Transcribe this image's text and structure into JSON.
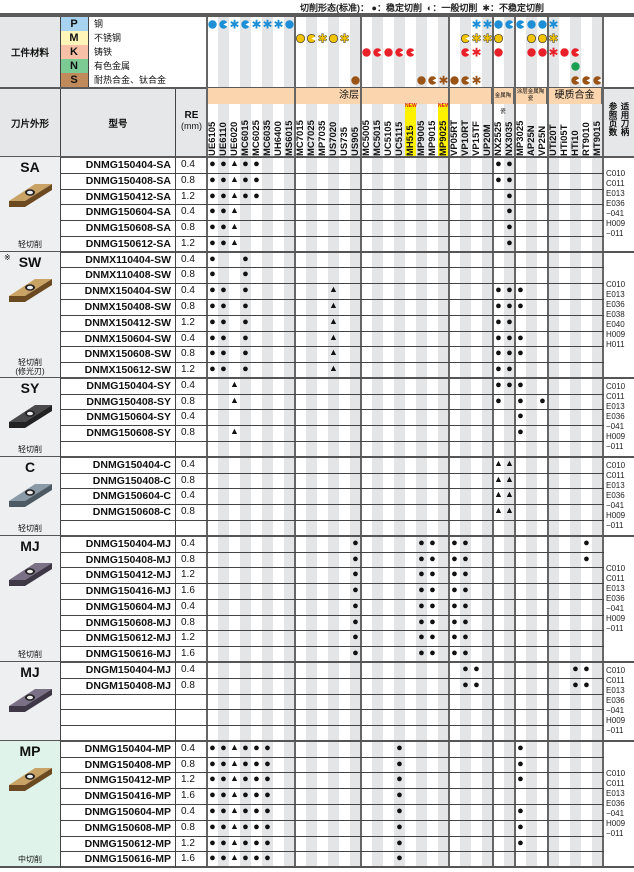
{
  "legend": {
    "title": "切削形态(标准)：",
    "stable": "●：稳定切削",
    "general": "◐：一般切削",
    "unstable": "✱：不稳定切削"
  },
  "header": {
    "workpiece": "工件材料",
    "shape": "刀片外形",
    "model": "型号",
    "re": "RE",
    "re_unit": "(mm)",
    "ref_a": "参照页数",
    "ref_b": "适用刀柄",
    "new_badge": "NEW"
  },
  "colors": {
    "P": "#1e8fd6",
    "M": "#f5c400",
    "K": "#e8202a",
    "N": "#1aa050",
    "S": "#9a5418",
    "stripe": "#e4e5e6",
    "band": "#fbd5ad"
  },
  "groups": [
    {
      "label": "涂层",
      "grades": [
        "UE6105",
        "UE6110",
        "UE6020",
        "MC6015",
        "MC6025",
        "MC6035",
        "UH6400",
        "MS6015",
        "MC7015",
        "MC7025",
        "MP7035",
        "US7020",
        "US735",
        "US905",
        "MC5005",
        "MC5015",
        "UC5105",
        "UC5115",
        "MH515",
        "MP9005",
        "MP9015",
        "MP9025",
        "VP05RT",
        "VP10RT",
        "VP15TF",
        "UP20M"
      ],
      "subgroups": [
        8,
        6,
        8,
        4
      ]
    },
    {
      "label": "金属陶瓷",
      "grades": [
        "NX2525",
        "NX3035"
      ]
    },
    {
      "label": "涂层金属陶瓷",
      "grades": [
        "MP3025",
        "AP25N",
        "VP25N"
      ]
    },
    {
      "label": "硬质合金",
      "grades": [
        "UTi20T",
        "HTi05T",
        "HTi10",
        "RT9010",
        "MT9015"
      ]
    }
  ],
  "new_grades": [
    "MH515",
    "MP9025"
  ],
  "materials": [
    {
      "letter": "P",
      "name": "钢",
      "bg": "#a7d3f0",
      "apps": {
        "UE6105": "stable",
        "UE6110": "general",
        "UE6020": "unstable",
        "MC6015": "general",
        "MC6025": "unstable",
        "MC6035": "unstable",
        "UH6400": "unstable",
        "MS6015": "stable",
        "VP15TF": "unstable",
        "UP20M": "unstable",
        "NX2525": "stable",
        "NX3035": "general",
        "MP3025": "general",
        "AP25N": "stable",
        "VP25N": "stable",
        "UTi20T": "unstable"
      }
    },
    {
      "letter": "M",
      "name": "不锈钢",
      "bg": "#fff5b8",
      "apps": {
        "MC7015": "stable",
        "MC7025": "general",
        "MP7035": "unstable",
        "US7020": "stable",
        "US735": "unstable",
        "VP10RT": "general",
        "VP15TF": "unstable",
        "UP20M": "unstable",
        "NX2525": "stable",
        "AP25N": "stable",
        "VP25N": "stable",
        "UTi20T": "unstable"
      }
    },
    {
      "letter": "K",
      "name": "铸铁",
      "bg": "#f9c0a8",
      "apps": {
        "MC5005": "stable",
        "MC5015": "general",
        "UC5105": "stable",
        "UC5115": "general",
        "MH515": "general",
        "VP10RT": "general",
        "VP15TF": "unstable",
        "NX2525": "stable",
        "AP25N": "stable",
        "VP25N": "stable",
        "UTi20T": "unstable",
        "HTi05T": "stable",
        "HTi10": "general"
      }
    },
    {
      "letter": "N",
      "name": "有色金属",
      "bg": "#7ccb95",
      "apps": {
        "HTi10": "stable"
      }
    },
    {
      "letter": "S",
      "name": "耐热合金、钛合金",
      "bg": "#c08a5a",
      "apps": {
        "US905": "stable",
        "MP9005": "stable",
        "MP9015": "general",
        "MP9025": "unstable",
        "VP05RT": "stable",
        "VP10RT": "general",
        "VP15TF": "unstable",
        "HTi10": "general",
        "RT9010": "general",
        "MT9015": "general"
      }
    }
  ],
  "sections": [
    {
      "code": "SA",
      "note": "",
      "label": "轻切削",
      "sublabel": "",
      "blank_rows": 0,
      "insert": "gold",
      "bg": "#eeeff0",
      "ref": [
        "C010",
        "C011",
        "E013",
        "E036",
        "−041",
        "H009",
        "−011"
      ],
      "rows": [
        {
          "model": "DNMG150404-SA",
          "re": "0.4",
          "marks": {
            "UE6105": "●",
            "UE6110": "●",
            "UE6020": "▲",
            "MC6015": "●",
            "MC6025": "●",
            "NX2525": "●",
            "NX3035": "●"
          }
        },
        {
          "model": "DNMG150408-SA",
          "re": "0.8",
          "marks": {
            "UE6105": "●",
            "UE6110": "●",
            "UE6020": "▲",
            "MC6015": "●",
            "MC6025": "●",
            "NX2525": "●",
            "NX3035": "●"
          }
        },
        {
          "model": "DNMG150412-SA",
          "re": "1.2",
          "marks": {
            "UE6105": "●",
            "UE6110": "●",
            "UE6020": "▲",
            "MC6015": "●",
            "MC6025": "●",
            "NX3035": "●"
          }
        },
        {
          "model": "DNMG150604-SA",
          "re": "0.4",
          "marks": {
            "UE6105": "●",
            "UE6110": "●",
            "UE6020": "▲",
            "NX3035": "●"
          }
        },
        {
          "model": "DNMG150608-SA",
          "re": "0.8",
          "marks": {
            "UE6105": "●",
            "UE6110": "●",
            "UE6020": "▲",
            "NX3035": "●"
          }
        },
        {
          "model": "DNMG150612-SA",
          "re": "1.2",
          "marks": {
            "UE6105": "●",
            "UE6110": "●",
            "UE6020": "▲",
            "NX3035": "●"
          }
        }
      ]
    },
    {
      "code": "SW",
      "note": "※",
      "label": "轻切削",
      "sublabel": "(修光刃)",
      "blank_rows": 0,
      "insert": "gold",
      "bg": "#eeeff0",
      "ref": [
        "C010",
        "E013",
        "E036",
        "E038",
        "E040",
        "H009",
        "H011"
      ],
      "rows": [
        {
          "model": "DNMX110404-SW",
          "re": "0.4",
          "marks": {
            "UE6105": "●",
            "MC6015": "●"
          }
        },
        {
          "model": "DNMX110408-SW",
          "re": "0.8",
          "marks": {
            "UE6105": "●",
            "MC6015": "●"
          }
        },
        {
          "model": "DNMX150404-SW",
          "re": "0.4",
          "marks": {
            "UE6105": "●",
            "UE6110": "●",
            "MC6015": "●",
            "US7020": "▲",
            "NX2525": "●",
            "NX3035": "●",
            "MP3025": "●"
          }
        },
        {
          "model": "DNMX150408-SW",
          "re": "0.8",
          "marks": {
            "UE6105": "●",
            "UE6110": "●",
            "MC6015": "●",
            "US7020": "▲",
            "NX2525": "●",
            "NX3035": "●",
            "MP3025": "●"
          }
        },
        {
          "model": "DNMX150412-SW",
          "re": "1.2",
          "marks": {
            "UE6105": "●",
            "UE6110": "●",
            "MC6015": "●",
            "US7020": "▲",
            "NX2525": "●",
            "NX3035": "●"
          }
        },
        {
          "model": "DNMX150604-SW",
          "re": "0.4",
          "marks": {
            "UE6105": "●",
            "UE6110": "●",
            "MC6015": "●",
            "US7020": "▲",
            "NX2525": "●",
            "NX3035": "●",
            "MP3025": "●"
          }
        },
        {
          "model": "DNMX150608-SW",
          "re": "0.8",
          "marks": {
            "UE6105": "●",
            "UE6110": "●",
            "MC6015": "●",
            "US7020": "▲",
            "NX2525": "●",
            "NX3035": "●",
            "MP3025": "●"
          }
        },
        {
          "model": "DNMX150612-SW",
          "re": "1.2",
          "marks": {
            "UE6105": "●",
            "UE6110": "●",
            "MC6015": "●",
            "US7020": "▲",
            "NX2525": "●",
            "NX3035": "●"
          }
        }
      ]
    },
    {
      "code": "SY",
      "note": "",
      "label": "轻切削",
      "sublabel": "",
      "blank_rows": 1,
      "insert": "dark",
      "bg": "#eeeff0",
      "ref": [
        "C010",
        "C011",
        "E013",
        "E036",
        "−041",
        "H009",
        "−011"
      ],
      "rows": [
        {
          "model": "DNMG150404-SY",
          "re": "0.4",
          "marks": {
            "UE6020": "▲",
            "NX2525": "●",
            "NX3035": "●",
            "MP3025": "●"
          }
        },
        {
          "model": "DNMG150408-SY",
          "re": "0.8",
          "marks": {
            "UE6020": "▲",
            "NX2525": "●",
            "MP3025": "●",
            "VP25N": "●"
          }
        },
        {
          "model": "DNMG150604-SY",
          "re": "0.4",
          "marks": {
            "MP3025": "●"
          }
        },
        {
          "model": "DNMG150608-SY",
          "re": "0.8",
          "marks": {
            "UE6020": "▲",
            "MP3025": "●"
          }
        }
      ]
    },
    {
      "code": "C",
      "note": "",
      "label": "轻切削",
      "sublabel": "",
      "blank_rows": 1,
      "insert": "steel",
      "bg": "#eeeff0",
      "ref": [
        "C010",
        "C011",
        "E013",
        "E036",
        "−041",
        "H009",
        "−011"
      ],
      "rows": [
        {
          "model": "DNMG150404-C",
          "re": "0.4",
          "marks": {
            "NX2525": "▲",
            "NX3035": "▲"
          }
        },
        {
          "model": "DNMG150408-C",
          "re": "0.8",
          "marks": {
            "NX2525": "▲",
            "NX3035": "▲"
          }
        },
        {
          "model": "DNMG150604-C",
          "re": "0.4",
          "marks": {
            "NX2525": "▲",
            "NX3035": "▲"
          }
        },
        {
          "model": "DNMG150608-C",
          "re": "0.8",
          "marks": {
            "NX2525": "▲",
            "NX3035": "▲"
          }
        }
      ]
    },
    {
      "code": "MJ",
      "note": "",
      "label": "轻切削",
      "sublabel": "",
      "blank_rows": 0,
      "insert": "purple",
      "bg": "#eeeff0",
      "ref": [
        "C010",
        "C011",
        "E013",
        "E036",
        "−041",
        "H009",
        "−011"
      ],
      "rows": [
        {
          "model": "DNMG150404-MJ",
          "re": "0.4",
          "marks": {
            "US905": "●",
            "MP9005": "●",
            "MP9015": "●",
            "VP05RT": "●",
            "VP10RT": "●",
            "RT9010": "●"
          }
        },
        {
          "model": "DNMG150408-MJ",
          "re": "0.8",
          "marks": {
            "US905": "●",
            "MP9005": "●",
            "MP9015": "●",
            "VP05RT": "●",
            "VP10RT": "●",
            "RT9010": "●"
          }
        },
        {
          "model": "DNMG150412-MJ",
          "re": "1.2",
          "marks": {
            "US905": "●",
            "MP9005": "●",
            "MP9015": "●",
            "VP05RT": "●",
            "VP10RT": "●"
          }
        },
        {
          "model": "DNMG150416-MJ",
          "re": "1.6",
          "marks": {
            "US905": "●",
            "MP9005": "●",
            "MP9015": "●",
            "VP05RT": "●",
            "VP10RT": "●"
          }
        },
        {
          "model": "DNMG150604-MJ",
          "re": "0.4",
          "marks": {
            "US905": "●",
            "MP9005": "●",
            "MP9015": "●",
            "VP05RT": "●",
            "VP10RT": "●"
          }
        },
        {
          "model": "DNMG150608-MJ",
          "re": "0.8",
          "marks": {
            "US905": "●",
            "MP9005": "●",
            "MP9015": "●",
            "VP05RT": "●",
            "VP10RT": "●"
          }
        },
        {
          "model": "DNMG150612-MJ",
          "re": "1.2",
          "marks": {
            "US905": "●",
            "MP9005": "●",
            "MP9015": "●",
            "VP05RT": "●",
            "VP10RT": "●"
          }
        },
        {
          "model": "DNMG150616-MJ",
          "re": "1.6",
          "marks": {
            "US905": "●",
            "MP9005": "●",
            "MP9015": "●",
            "VP05RT": "●",
            "VP10RT": "●"
          }
        }
      ]
    },
    {
      "code": "MJ",
      "note": "",
      "label": "",
      "sublabel": "",
      "blank_rows": 3,
      "insert": "purple",
      "bg": "#eeeff0",
      "ref": [
        "C010",
        "C011",
        "E013",
        "E036",
        "−041",
        "H009",
        "−011"
      ],
      "rows": [
        {
          "model": "DNGM150404-MJ",
          "re": "0.4",
          "marks": {
            "VP10RT": "●",
            "VP15TF": "●",
            "HTi10": "●",
            "RT9010": "●"
          }
        },
        {
          "model": "DNGM150408-MJ",
          "re": "0.8",
          "marks": {
            "VP10RT": "●",
            "VP15TF": "●",
            "HTi10": "●",
            "RT9010": "●"
          }
        }
      ]
    },
    {
      "code": "MP",
      "note": "",
      "label": "中切削",
      "sublabel": "",
      "blank_rows": 0,
      "insert": "gold",
      "bg": "#e0f3ea",
      "ref": [
        "C010",
        "C011",
        "E013",
        "E036",
        "−041",
        "H009",
        "−011"
      ],
      "rows": [
        {
          "model": "DNMG150404-MP",
          "re": "0.4",
          "marks": {
            "UE6105": "●",
            "UE6110": "●",
            "UE6020": "▲",
            "MC6015": "●",
            "MC6025": "●",
            "MC6035": "●",
            "UC5115": "●",
            "MP3025": "●"
          }
        },
        {
          "model": "DNMG150408-MP",
          "re": "0.8",
          "marks": {
            "UE6105": "●",
            "UE6110": "●",
            "UE6020": "▲",
            "MC6015": "●",
            "MC6025": "●",
            "MC6035": "●",
            "UC5115": "●",
            "MP3025": "●"
          }
        },
        {
          "model": "DNMG150412-MP",
          "re": "1.2",
          "marks": {
            "UE6105": "●",
            "UE6110": "●",
            "UE6020": "▲",
            "MC6015": "●",
            "MC6025": "●",
            "MC6035": "●",
            "UC5115": "●",
            "MP3025": "●"
          }
        },
        {
          "model": "DNMG150416-MP",
          "re": "1.6",
          "marks": {
            "UE6105": "●",
            "UE6110": "●",
            "UE6020": "▲",
            "MC6015": "●",
            "MC6025": "●",
            "MC6035": "●",
            "UC5115": "●"
          }
        },
        {
          "model": "DNMG150604-MP",
          "re": "0.4",
          "marks": {
            "UE6105": "●",
            "UE6110": "●",
            "UE6020": "▲",
            "MC6015": "●",
            "MC6025": "●",
            "MC6035": "●",
            "UC5115": "●",
            "MP3025": "●"
          }
        },
        {
          "model": "DNMG150608-MP",
          "re": "0.8",
          "marks": {
            "UE6105": "●",
            "UE6110": "●",
            "UE6020": "▲",
            "MC6015": "●",
            "MC6025": "●",
            "MC6035": "●",
            "UC5115": "●",
            "MP3025": "●"
          }
        },
        {
          "model": "DNMG150612-MP",
          "re": "1.2",
          "marks": {
            "UE6105": "●",
            "UE6110": "●",
            "UE6020": "▲",
            "MC6015": "●",
            "MC6025": "●",
            "MC6035": "●",
            "UC5115": "●",
            "MP3025": "●"
          }
        },
        {
          "model": "DNMG150616-MP",
          "re": "1.6",
          "marks": {
            "UE6105": "●",
            "UE6110": "●",
            "UE6020": "▲",
            "MC6015": "●",
            "MC6025": "●",
            "MC6035": "●",
            "UC5115": "●"
          }
        }
      ]
    }
  ]
}
